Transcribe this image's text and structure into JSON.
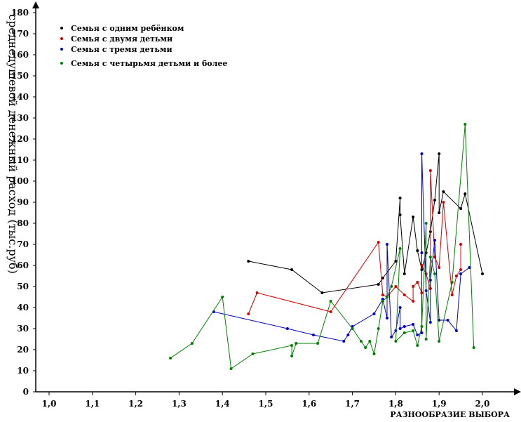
{
  "chart_data": {
    "type": "line",
    "title": "",
    "xlabel": "РАЗНООБРАЗИЕ ВЫБОРА",
    "ylabel": "среднедушевой денежный расход (тыс.руб)",
    "xlim": [
      0.97,
      2.06
    ],
    "ylim": [
      0,
      180
    ],
    "x_ticks": [
      1.0,
      1.1,
      1.2,
      1.3,
      1.4,
      1.5,
      1.6,
      1.7,
      1.8,
      1.9,
      2.0
    ],
    "x_tick_labels": [
      "1,0",
      "1,1",
      "1,2",
      "1,3",
      "1,4",
      "1,5",
      "1,6",
      "1,7",
      "1,8",
      "1,9",
      "2,0"
    ],
    "y_ticks": [
      0,
      10,
      20,
      30,
      40,
      50,
      60,
      70,
      80,
      90,
      100,
      110,
      120,
      130,
      140,
      150,
      160,
      170,
      180
    ],
    "grid": false,
    "legend_position": "top-left",
    "series": [
      {
        "name": "Семья с одним ребёнком",
        "color": "#000000",
        "points": [
          [
            1.46,
            62
          ],
          [
            1.56,
            58
          ],
          [
            1.63,
            47
          ],
          [
            1.76,
            51
          ],
          [
            1.77,
            54
          ],
          [
            1.8,
            62
          ],
          [
            1.81,
            92
          ],
          [
            1.81,
            84
          ],
          [
            1.82,
            56
          ],
          [
            1.84,
            83
          ],
          [
            1.85,
            67
          ],
          [
            1.86,
            58
          ],
          [
            1.87,
            66
          ],
          [
            1.88,
            76
          ],
          [
            1.89,
            91
          ],
          [
            1.9,
            113
          ],
          [
            1.9,
            85
          ],
          [
            1.91,
            95
          ],
          [
            1.95,
            87
          ],
          [
            1.96,
            94
          ],
          [
            2.0,
            56
          ]
        ]
      },
      {
        "name": "Семья с двумя детьми",
        "color": "#d00000",
        "points": [
          [
            1.46,
            37
          ],
          [
            1.48,
            47
          ],
          [
            1.65,
            38
          ],
          [
            1.76,
            71
          ],
          [
            1.77,
            46
          ],
          [
            1.78,
            45
          ],
          [
            1.8,
            50
          ],
          [
            1.82,
            46
          ],
          [
            1.84,
            43
          ],
          [
            1.84,
            50
          ],
          [
            1.85,
            52
          ],
          [
            1.86,
            47
          ],
          [
            1.86,
            60
          ],
          [
            1.87,
            56
          ],
          [
            1.88,
            49
          ],
          [
            1.88,
            105
          ],
          [
            1.89,
            64
          ],
          [
            1.9,
            59
          ],
          [
            1.91,
            90
          ],
          [
            1.93,
            46
          ],
          [
            1.94,
            55
          ],
          [
            1.95,
            58
          ],
          [
            1.95,
            70
          ]
        ]
      },
      {
        "name": "Семья с тремя детьми",
        "color": "#0000c8",
        "points": [
          [
            1.38,
            38
          ],
          [
            1.55,
            30
          ],
          [
            1.61,
            27
          ],
          [
            1.68,
            24
          ],
          [
            1.69,
            27
          ],
          [
            1.7,
            31
          ],
          [
            1.75,
            37
          ],
          [
            1.77,
            44
          ],
          [
            1.78,
            35
          ],
          [
            1.78,
            70
          ],
          [
            1.79,
            26
          ],
          [
            1.8,
            29
          ],
          [
            1.81,
            40
          ],
          [
            1.81,
            30
          ],
          [
            1.82,
            31
          ],
          [
            1.84,
            32
          ],
          [
            1.85,
            27
          ],
          [
            1.86,
            28
          ],
          [
            1.86,
            66
          ],
          [
            1.86,
            113
          ],
          [
            1.87,
            48
          ],
          [
            1.88,
            33
          ],
          [
            1.88,
            53
          ],
          [
            1.89,
            72
          ],
          [
            1.9,
            34
          ],
          [
            1.92,
            34
          ],
          [
            1.94,
            29
          ],
          [
            1.95,
            56
          ],
          [
            1.97,
            59
          ]
        ]
      },
      {
        "name": "Семья с четырьмя детьми и более",
        "color": "#008000",
        "points": [
          [
            1.28,
            16
          ],
          [
            1.33,
            23
          ],
          [
            1.4,
            45
          ],
          [
            1.42,
            11
          ],
          [
            1.47,
            18
          ],
          [
            1.56,
            22
          ],
          [
            1.56,
            17
          ],
          [
            1.57,
            23
          ],
          [
            1.62,
            23
          ],
          [
            1.65,
            43
          ],
          [
            1.7,
            30
          ],
          [
            1.72,
            24
          ],
          [
            1.73,
            21
          ],
          [
            1.74,
            24
          ],
          [
            1.75,
            18
          ],
          [
            1.76,
            30
          ],
          [
            1.77,
            43
          ],
          [
            1.78,
            45
          ],
          [
            1.79,
            50
          ],
          [
            1.81,
            68
          ],
          [
            1.8,
            24
          ],
          [
            1.82,
            28
          ],
          [
            1.84,
            29
          ],
          [
            1.85,
            22
          ],
          [
            1.86,
            31
          ],
          [
            1.87,
            80
          ],
          [
            1.87,
            25
          ],
          [
            1.88,
            64
          ],
          [
            1.89,
            56
          ],
          [
            1.9,
            24
          ],
          [
            1.93,
            52
          ],
          [
            1.96,
            127
          ],
          [
            1.98,
            21
          ]
        ]
      }
    ]
  }
}
